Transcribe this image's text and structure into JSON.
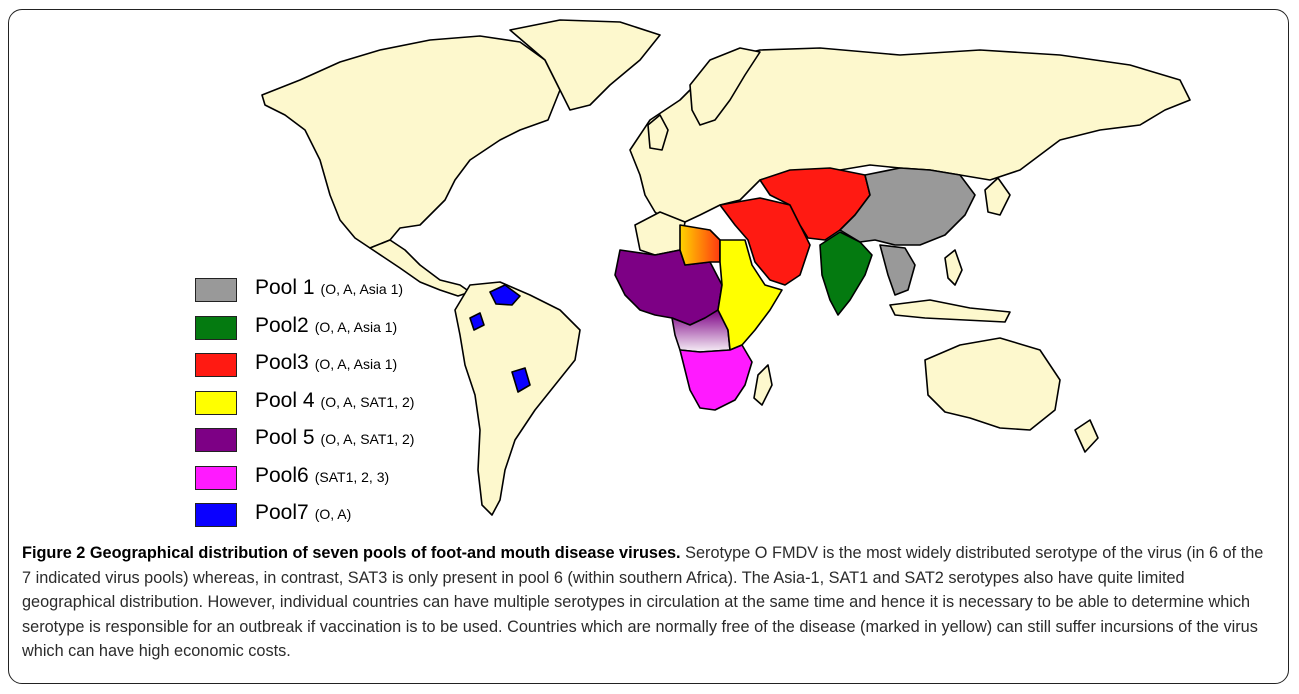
{
  "map": {
    "colors": {
      "free": "#fdf8cd",
      "border": "#000000",
      "water": "#ffffff"
    }
  },
  "legend": [
    {
      "name": "Pool 1",
      "serotypes": "(O, A, Asia 1)",
      "color": "#999999"
    },
    {
      "name": "Pool2",
      "serotypes": "(O, A, Asia 1)",
      "color": "#047a10"
    },
    {
      "name": "Pool3",
      "serotypes": "(O, A, Asia 1)",
      "color": "#ff1a12"
    },
    {
      "name": "Pool 4",
      "serotypes": "(O, A, SAT1, 2)",
      "color": "#ffff00"
    },
    {
      "name": "Pool 5",
      "serotypes": "(O, A, SAT1, 2)",
      "color": "#7d0085"
    },
    {
      "name": "Pool6",
      "serotypes": "(SAT1, 2, 3)",
      "color": "#ff1aff"
    },
    {
      "name": "Pool7",
      "serotypes": "(O, A)",
      "color": "#0a00ff"
    }
  ],
  "caption": {
    "title": "Figure 2 Geographical distribution of seven pools of foot-and mouth disease viruses.",
    "body": " Serotype O FMDV is the most widely distributed serotype of the virus (in 6 of the 7 indicated virus pools) whereas, in contrast, SAT3 is only present in pool 6 (within southern Africa). The Asia-1, SAT1 and SAT2 serotypes also have quite limited geographical distribution. However, individual countries can have multiple serotypes in circulation at the same time and hence it is necessary to be able to determine which serotype is responsible for an outbreak if vaccination is to be used. Countries which are normally free of the disease (marked in yellow) can still suffer incursions of the virus which can have high economic costs."
  }
}
